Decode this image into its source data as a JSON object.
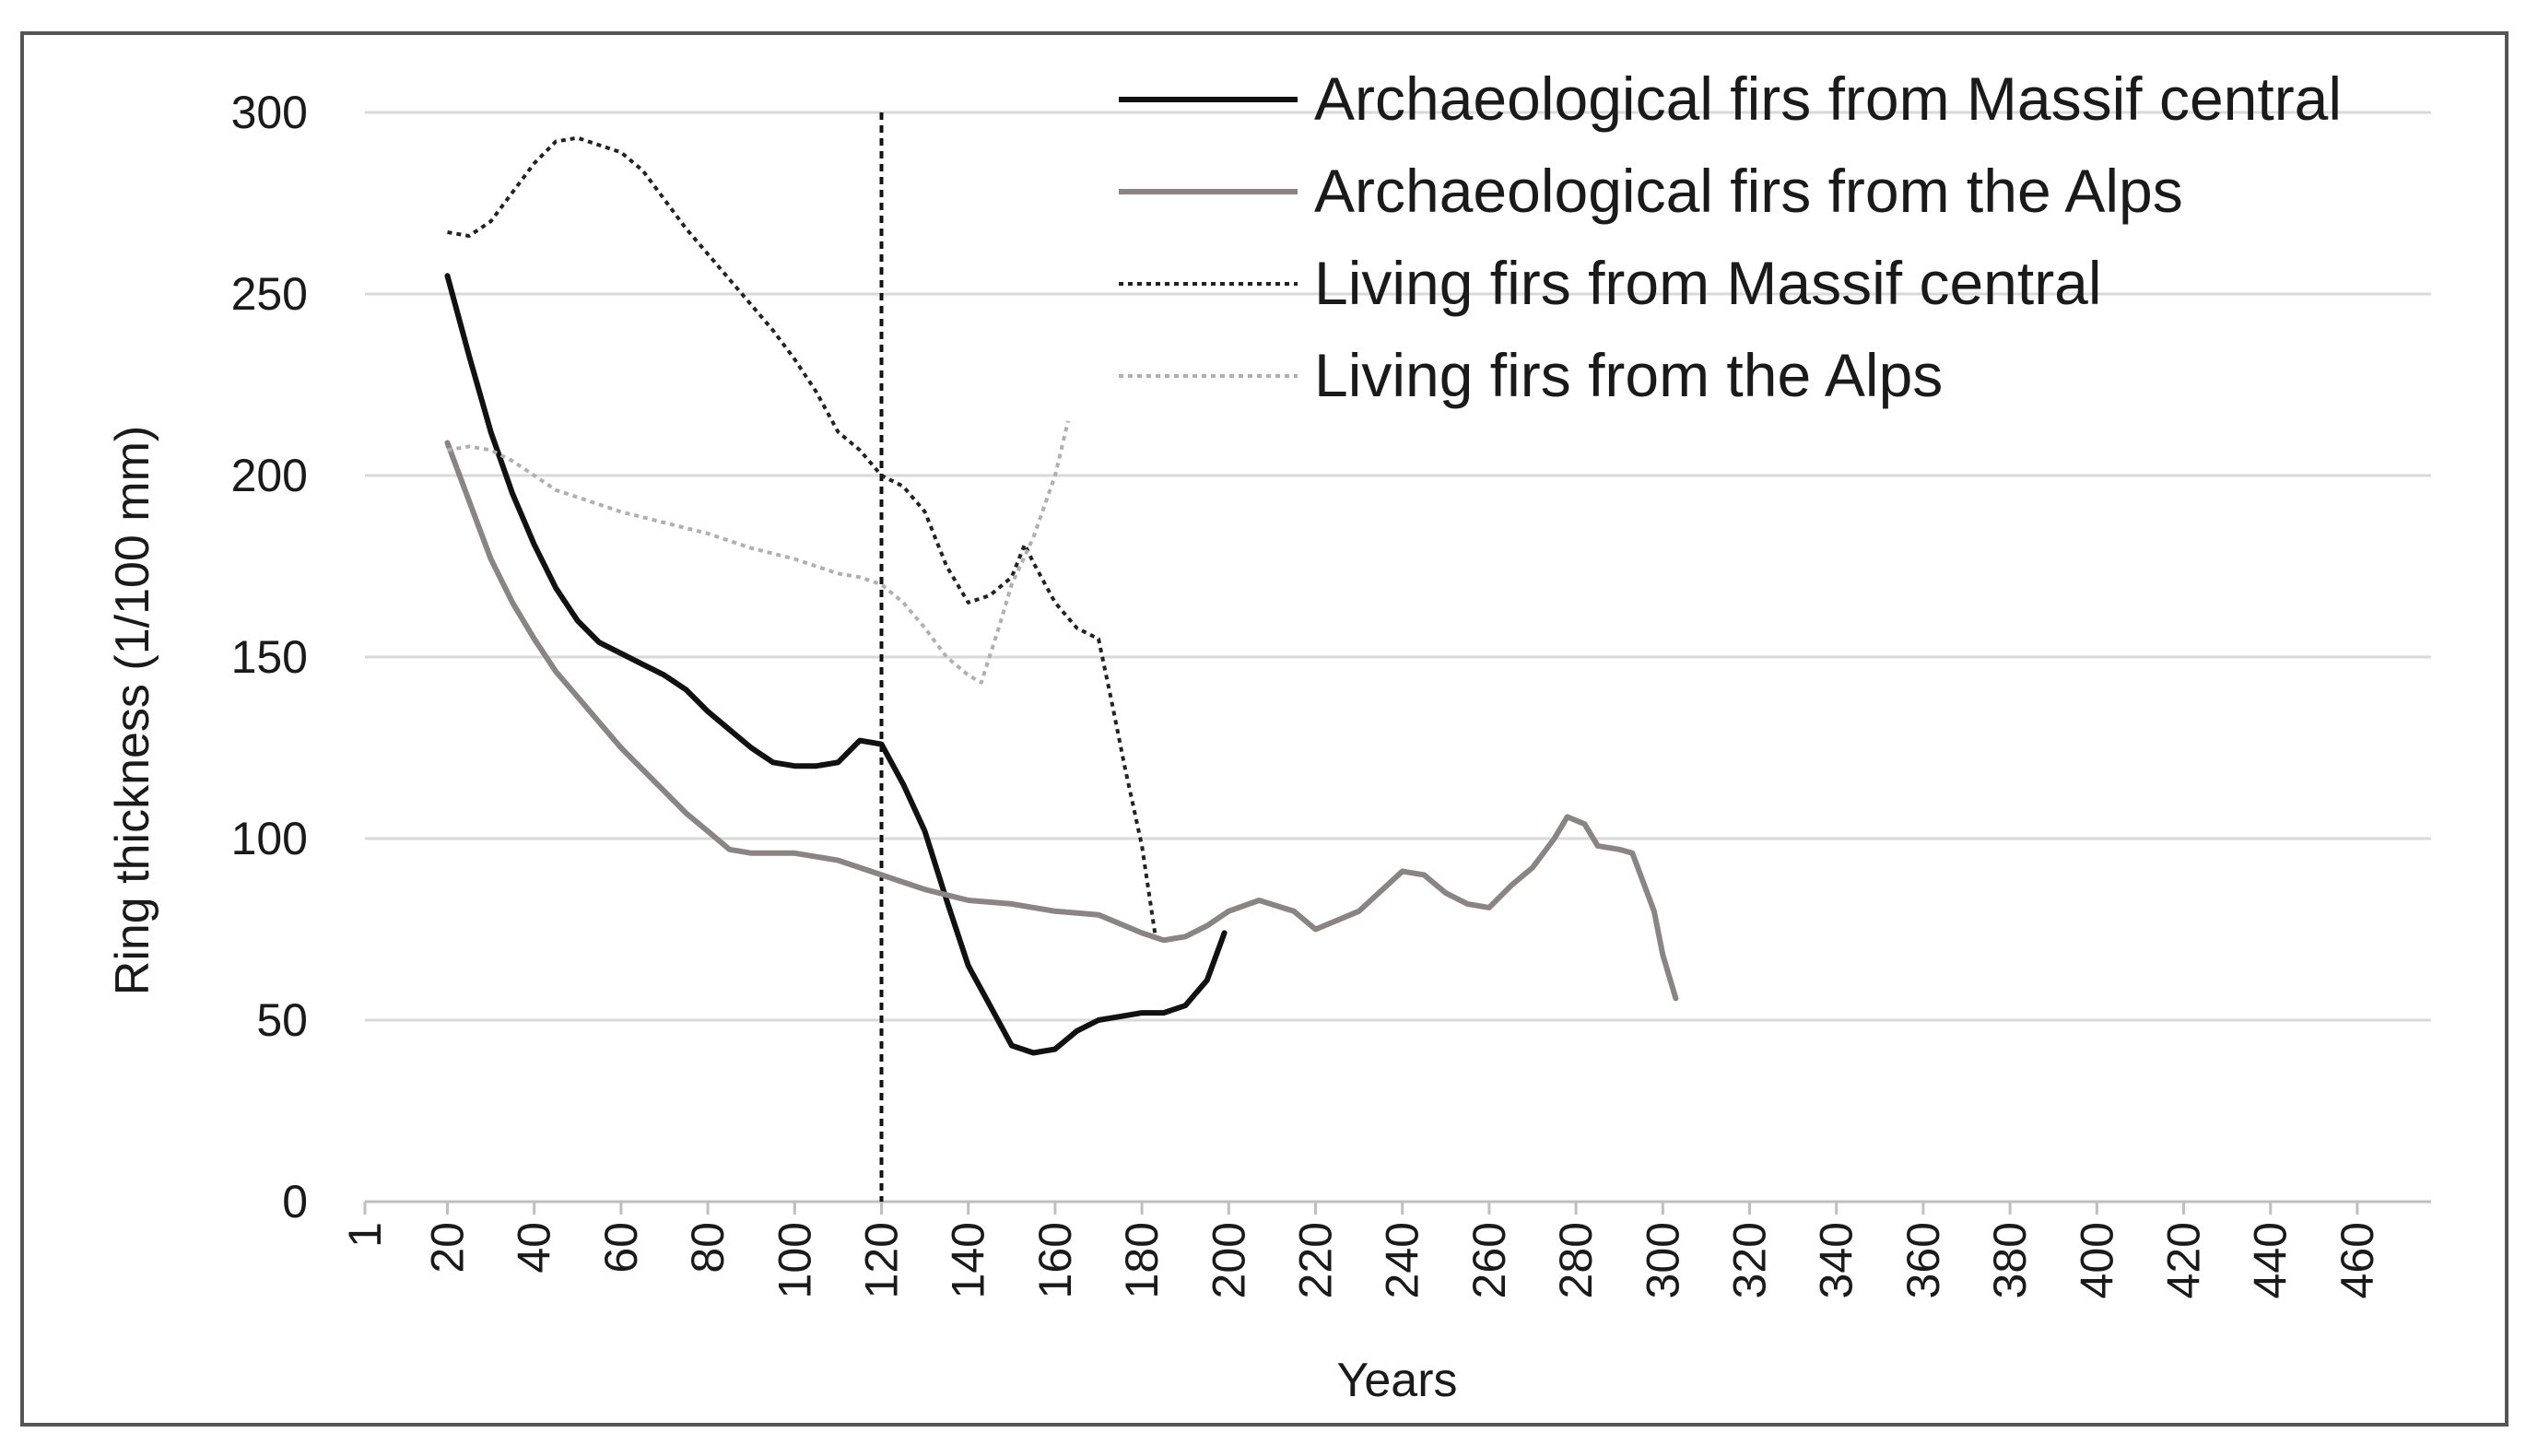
{
  "chart_data": {
    "type": "line",
    "xlabel": "Years",
    "ylabel": "Ring thickness (1/100 mm)",
    "ylim": [
      0,
      300
    ],
    "yticks": [
      "0",
      "50",
      "100",
      "150",
      "200",
      "250",
      "300"
    ],
    "xticks": [
      "1",
      "20",
      "40",
      "60",
      "80",
      "100",
      "120",
      "140",
      "160",
      "180",
      "200",
      "220",
      "240",
      "260",
      "280",
      "300",
      "320",
      "340",
      "360",
      "380",
      "400",
      "420",
      "440",
      "460"
    ],
    "xlim": [
      1,
      477
    ],
    "grid": "horizontal",
    "legend_position": "top-right",
    "vertical_marker_x": 120,
    "series": [
      {
        "name": "Archaeological firs from Massif central",
        "color": "#111111",
        "dash": "solid",
        "width": 6,
        "x": [
          20,
          25,
          30,
          35,
          40,
          45,
          50,
          55,
          60,
          65,
          70,
          75,
          80,
          85,
          90,
          95,
          100,
          105,
          110,
          115,
          120,
          125,
          130,
          135,
          140,
          145,
          150,
          155,
          160,
          165,
          170,
          175,
          180,
          185,
          190,
          195,
          199
        ],
        "y": [
          255,
          233,
          212,
          195,
          181,
          169,
          160,
          154,
          151,
          148,
          145,
          141,
          135,
          130,
          125,
          121,
          120,
          120,
          121,
          127,
          126,
          115,
          102,
          83,
          65,
          54,
          43,
          41,
          42,
          47,
          50,
          51,
          52,
          52,
          54,
          61,
          74
        ]
      },
      {
        "name": "Archaeological firs from the Alps",
        "color": "#8a8583",
        "dash": "solid",
        "width": 6,
        "x": [
          20,
          25,
          30,
          35,
          40,
          45,
          50,
          55,
          60,
          65,
          70,
          75,
          80,
          85,
          90,
          100,
          110,
          120,
          130,
          140,
          150,
          160,
          170,
          180,
          185,
          190,
          195,
          200,
          207,
          215,
          220,
          230,
          240,
          245,
          250,
          255,
          260,
          265,
          270,
          275,
          278,
          282,
          285,
          290,
          293,
          298,
          300,
          303
        ],
        "y": [
          209,
          193,
          177,
          165,
          155,
          146,
          139,
          132,
          125,
          119,
          113,
          107,
          102,
          97,
          96,
          96,
          94,
          90,
          86,
          83,
          82,
          80,
          79,
          74,
          72,
          73,
          76,
          80,
          83,
          80,
          75,
          80,
          91,
          90,
          85,
          82,
          81,
          87,
          92,
          100,
          106,
          104,
          98,
          97,
          96,
          80,
          68,
          56
        ]
      },
      {
        "name": "Living firs from Massif central",
        "color": "#222222",
        "dash": "dotted",
        "width": 4,
        "x": [
          20,
          25,
          30,
          35,
          40,
          45,
          50,
          55,
          60,
          65,
          70,
          75,
          80,
          85,
          90,
          95,
          100,
          105,
          110,
          115,
          120,
          125,
          130,
          135,
          140,
          145,
          150,
          153,
          155,
          160,
          165,
          170,
          173,
          176,
          180,
          183
        ],
        "y": [
          267,
          266,
          270,
          278,
          286,
          292,
          293,
          291,
          289,
          284,
          276,
          268,
          261,
          254,
          247,
          240,
          232,
          223,
          212,
          207,
          200,
          197,
          190,
          175,
          165,
          167,
          172,
          181,
          176,
          165,
          158,
          155,
          138,
          120,
          98,
          74
        ]
      },
      {
        "name": "Living firs from the Alps",
        "color": "#b0b0b0",
        "dash": "dotted",
        "width": 4,
        "x": [
          20,
          25,
          30,
          35,
          40,
          45,
          50,
          60,
          70,
          80,
          90,
          100,
          110,
          115,
          120,
          125,
          130,
          135,
          140,
          143,
          147,
          150,
          155,
          160,
          163
        ],
        "y": [
          207,
          208,
          207,
          204,
          200,
          196,
          194,
          190,
          187,
          184,
          180,
          177,
          173,
          172,
          170,
          165,
          158,
          150,
          145,
          143,
          158,
          170,
          183,
          200,
          215
        ]
      }
    ]
  }
}
